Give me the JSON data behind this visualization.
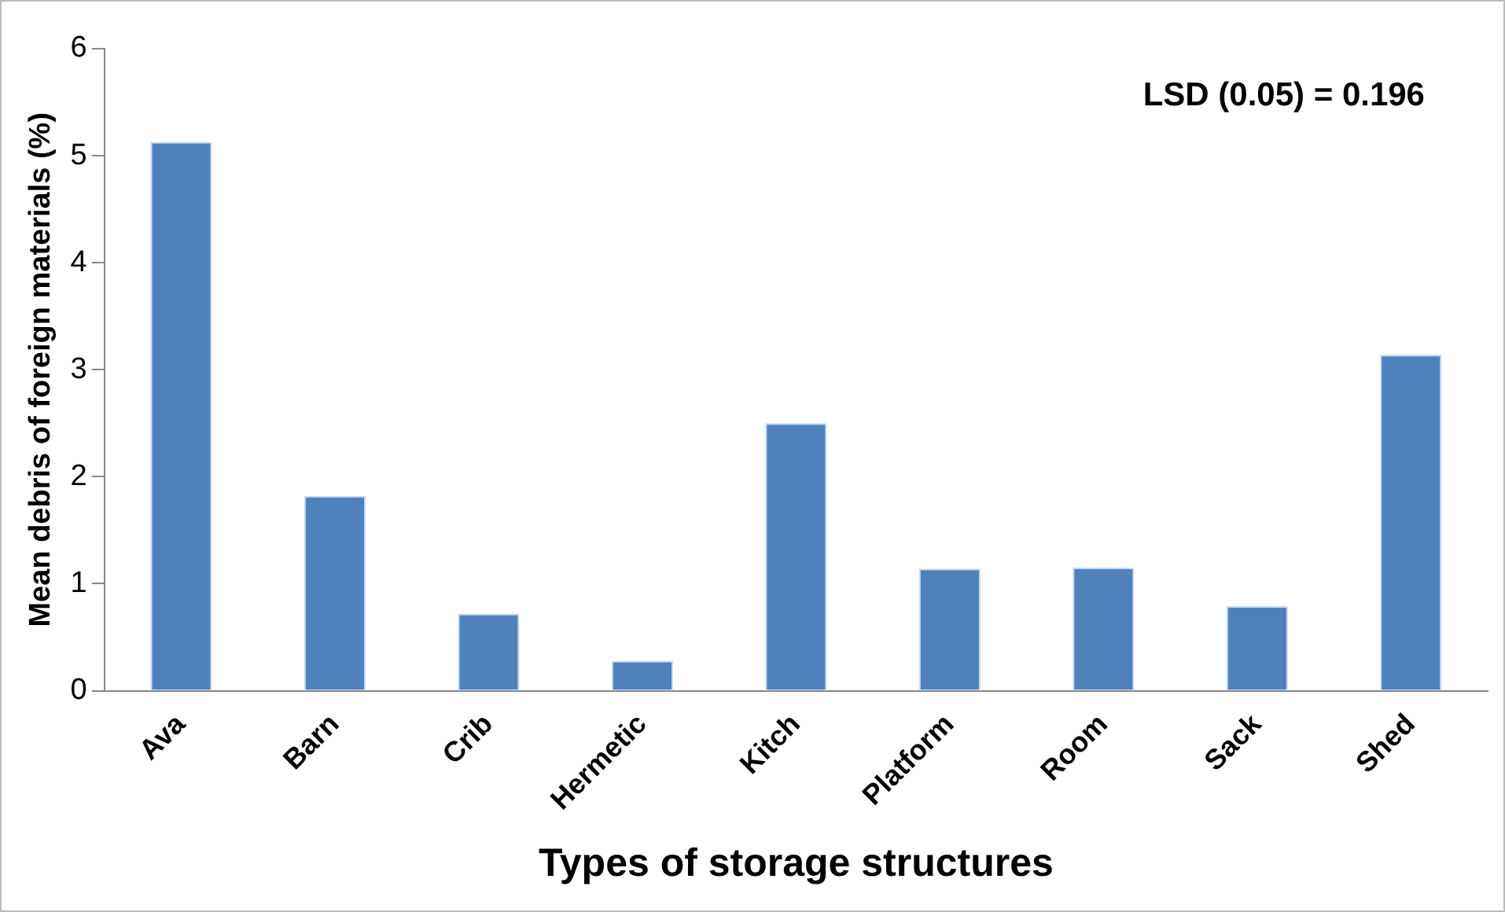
{
  "chart_data": {
    "type": "bar",
    "xlabel": "Types of storage structures",
    "ylabel": "Mean debris of foreign materials (%)",
    "categories": [
      "Ava",
      "Barn",
      "Crib",
      "Hermetic",
      "Kitch",
      "Platform",
      "Room",
      "Sack",
      "Shed"
    ],
    "values": [
      5.13,
      1.82,
      0.72,
      0.28,
      2.5,
      1.14,
      1.15,
      0.79,
      3.14
    ],
    "color": "#4f81bd",
    "ylim": [
      0,
      6
    ],
    "yticks": [
      0,
      1,
      2,
      3,
      4,
      5,
      6
    ],
    "grid": false,
    "legend": false,
    "annotations": [
      "LSD (0.05) = 0.196"
    ]
  }
}
